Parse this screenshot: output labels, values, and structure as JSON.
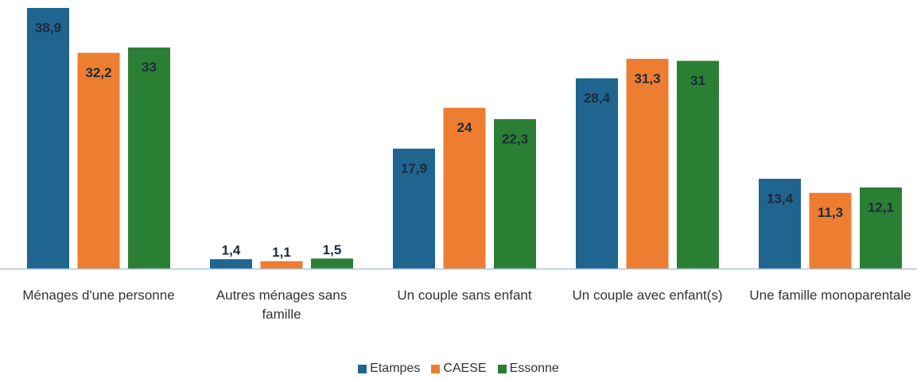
{
  "chart_data": {
    "type": "bar",
    "categories": [
      "Ménages d'une personne",
      "Autres ménages sans famille",
      "Un couple sans enfant",
      "Un couple avec enfant(s)",
      "Une famille monoparentale"
    ],
    "series": [
      {
        "name": "Etampes",
        "color": "#1f6590",
        "values": [
          38.9,
          1.4,
          17.9,
          28.4,
          13.4
        ],
        "value_labels": [
          "38,9",
          "1,4",
          "17,9",
          "28,4",
          "13,4"
        ]
      },
      {
        "name": "CAESE",
        "color": "#ed7d31",
        "values": [
          32.2,
          1.1,
          24,
          31.3,
          11.3
        ],
        "value_labels": [
          "32,2",
          "1,1",
          "24",
          "31,3",
          "11,3"
        ]
      },
      {
        "name": "Essonne",
        "color": "#2a7f35",
        "values": [
          33,
          1.5,
          22.3,
          31,
          12.1
        ],
        "value_labels": [
          "33",
          "1,5",
          "22,3",
          "31",
          "12,1"
        ]
      }
    ],
    "legend": "bottom"
  }
}
